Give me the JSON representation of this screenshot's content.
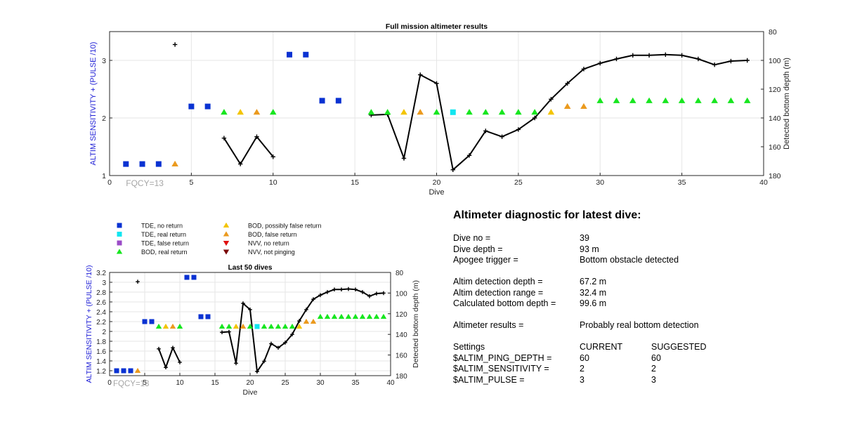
{
  "chart_data": [
    {
      "type": "scatter",
      "title": "Full mission altimeter results",
      "xlabel": "Dive",
      "ylabel_left": "ALTIM SENSITIVITY + (PULSE /10)",
      "ylabel_right": "Detected bottom depth (m)",
      "xlim": [
        0,
        40
      ],
      "ylim_left": [
        1,
        3.5
      ],
      "ylim_right": [
        180,
        80
      ],
      "xticks": [
        0,
        5,
        10,
        15,
        20,
        25,
        30,
        35,
        40
      ],
      "yticks_left": [
        1,
        2,
        3
      ],
      "yticks_right": [
        80,
        100,
        120,
        140,
        160,
        180
      ],
      "grid": true,
      "annotation": "FQCY=13",
      "markers": [
        {
          "series": "TDE, no return",
          "points": [
            [
              1,
              1.2
            ],
            [
              2,
              1.2
            ],
            [
              3,
              1.2
            ],
            [
              5,
              2.2
            ],
            [
              6,
              2.2
            ],
            [
              11,
              3.1
            ],
            [
              12,
              3.1
            ],
            [
              13,
              2.3
            ],
            [
              14,
              2.3
            ]
          ]
        },
        {
          "series": "TDE, real return",
          "points": [
            [
              21,
              2.1
            ]
          ]
        },
        {
          "series": "BOD, real return",
          "points": [
            [
              7,
              2.1
            ],
            [
              10,
              2.1
            ],
            [
              16,
              2.1
            ],
            [
              17,
              2.1
            ],
            [
              20,
              2.1
            ],
            [
              22,
              2.1
            ],
            [
              23,
              2.1
            ],
            [
              24,
              2.1
            ],
            [
              25,
              2.1
            ],
            [
              26,
              2.1
            ],
            [
              30,
              2.3
            ],
            [
              31,
              2.3
            ],
            [
              32,
              2.3
            ],
            [
              33,
              2.3
            ],
            [
              34,
              2.3
            ],
            [
              35,
              2.3
            ],
            [
              36,
              2.3
            ],
            [
              37,
              2.3
            ],
            [
              38,
              2.3
            ],
            [
              39,
              2.3
            ]
          ]
        },
        {
          "series": "BOD, possibly false return",
          "points": [
            [
              8,
              2.1
            ],
            [
              18,
              2.1
            ],
            [
              27,
              2.1
            ]
          ]
        },
        {
          "series": "BOD, false return",
          "points": [
            [
              4,
              1.2
            ],
            [
              9,
              2.1
            ],
            [
              19,
              2.1
            ],
            [
              28,
              2.2
            ],
            [
              29,
              2.2
            ]
          ]
        }
      ],
      "depth_segments": [
        [
          [
            4,
            89
          ]
        ],
        [
          [
            7,
            154
          ],
          [
            8,
            172
          ],
          [
            9,
            153
          ],
          [
            10,
            167
          ]
        ],
        [
          [
            16,
            138
          ],
          [
            17,
            137.5
          ],
          [
            18,
            168
          ],
          [
            19,
            110
          ],
          [
            20,
            116
          ],
          [
            21,
            176
          ],
          [
            22,
            166
          ],
          [
            23,
            149
          ],
          [
            24,
            153
          ],
          [
            25,
            148
          ],
          [
            26,
            140
          ],
          [
            27,
            127
          ],
          [
            28,
            116
          ],
          [
            29,
            106
          ],
          [
            30,
            102
          ],
          [
            31,
            99
          ],
          [
            32,
            96.5
          ],
          [
            33,
            96.5
          ],
          [
            34,
            96
          ],
          [
            35,
            96.5
          ],
          [
            36,
            99
          ],
          [
            37,
            103
          ],
          [
            38,
            100.5
          ],
          [
            39,
            100
          ]
        ]
      ]
    },
    {
      "type": "scatter",
      "title": "Last 50 dives",
      "xlabel": "Dive",
      "ylabel_left": "ALTIM SENSITIVITY + (PULSE /10)",
      "ylabel_right": "Detected bottom depth (m)",
      "xlim": [
        0,
        40
      ],
      "ylim_left": [
        1.1,
        3.2
      ],
      "ylim_right": [
        180,
        80
      ],
      "xticks": [
        0,
        5,
        10,
        15,
        20,
        25,
        30,
        35,
        40
      ],
      "yticks_left": [
        1.2,
        1.4,
        1.6,
        1.8,
        2,
        2.2,
        2.4,
        2.6,
        2.8,
        3,
        3.2
      ],
      "yticks_right": [
        80,
        100,
        120,
        140,
        160,
        180
      ],
      "grid": true,
      "annotation": "FQCY=13",
      "markers": [
        {
          "series": "TDE, no return",
          "points": [
            [
              1,
              1.2
            ],
            [
              2,
              1.2
            ],
            [
              3,
              1.2
            ],
            [
              5,
              2.2
            ],
            [
              6,
              2.2
            ],
            [
              11,
              3.1
            ],
            [
              12,
              3.1
            ],
            [
              13,
              2.3
            ],
            [
              14,
              2.3
            ]
          ]
        },
        {
          "series": "TDE, real return",
          "points": [
            [
              21,
              2.1
            ]
          ]
        },
        {
          "series": "BOD, real return",
          "points": [
            [
              7,
              2.1
            ],
            [
              10,
              2.1
            ],
            [
              16,
              2.1
            ],
            [
              17,
              2.1
            ],
            [
              20,
              2.1
            ],
            [
              22,
              2.1
            ],
            [
              23,
              2.1
            ],
            [
              24,
              2.1
            ],
            [
              25,
              2.1
            ],
            [
              26,
              2.1
            ],
            [
              30,
              2.3
            ],
            [
              31,
              2.3
            ],
            [
              32,
              2.3
            ],
            [
              33,
              2.3
            ],
            [
              34,
              2.3
            ],
            [
              35,
              2.3
            ],
            [
              36,
              2.3
            ],
            [
              37,
              2.3
            ],
            [
              38,
              2.3
            ],
            [
              39,
              2.3
            ]
          ]
        },
        {
          "series": "BOD, possibly false return",
          "points": [
            [
              8,
              2.1
            ],
            [
              18,
              2.1
            ],
            [
              27,
              2.1
            ]
          ]
        },
        {
          "series": "BOD, false return",
          "points": [
            [
              4,
              1.2
            ],
            [
              9,
              2.1
            ],
            [
              19,
              2.1
            ],
            [
              28,
              2.2
            ],
            [
              29,
              2.2
            ]
          ]
        }
      ],
      "depth_segments": [
        [
          [
            4,
            89
          ]
        ],
        [
          [
            7,
            154
          ],
          [
            8,
            172
          ],
          [
            9,
            153
          ],
          [
            10,
            167
          ]
        ],
        [
          [
            16,
            138
          ],
          [
            17,
            137.5
          ],
          [
            18,
            168
          ],
          [
            19,
            110
          ],
          [
            20,
            116
          ],
          [
            21,
            176
          ],
          [
            22,
            166
          ],
          [
            23,
            149
          ],
          [
            24,
            153
          ],
          [
            25,
            148
          ],
          [
            26,
            140
          ],
          [
            27,
            127
          ],
          [
            28,
            116
          ],
          [
            29,
            106
          ],
          [
            30,
            102
          ],
          [
            31,
            99
          ],
          [
            32,
            96.5
          ],
          [
            33,
            96.5
          ],
          [
            34,
            96
          ],
          [
            35,
            96.5
          ],
          [
            36,
            99
          ],
          [
            37,
            103
          ],
          [
            38,
            100.5
          ],
          [
            39,
            100
          ]
        ]
      ]
    }
  ],
  "legend": [
    {
      "label": "TDE, no return",
      "shape": "square",
      "color": "#0a32d2"
    },
    {
      "label": "TDE, real return",
      "shape": "square",
      "color": "#12e6f0"
    },
    {
      "label": "TDE, false return",
      "shape": "square",
      "color": "#9b4cc7"
    },
    {
      "label": "BOD, real return",
      "shape": "tri-up",
      "color": "#17e61f"
    },
    {
      "label": "BOD, possibly false return",
      "shape": "tri-up",
      "color": "#f3c400"
    },
    {
      "label": "BOD, false return",
      "shape": "tri-up",
      "color": "#eb9a1e"
    },
    {
      "label": "NVV, no return",
      "shape": "tri-down",
      "color": "#e01010"
    },
    {
      "label": "NVV, not pinging",
      "shape": "tri-down",
      "color": "#7a0808"
    }
  ],
  "colors": {
    "tde_no_return": "#0a32d2",
    "tde_real_return": "#12e6f0",
    "bod_real_return": "#17e61f",
    "bod_possibly_false": "#f3c400",
    "bod_false_return": "#eb9a1e",
    "left_axis_label": "#1f1fd6",
    "annotation": "#a6a6a6",
    "depth_line": "#000000"
  },
  "diagnostic": {
    "title": "Altimeter diagnostic for latest dive:",
    "dive_no_label": "Dive no =",
    "dive_no": "39",
    "dive_depth_label": "Dive depth =",
    "dive_depth": "93 m",
    "apogee_label": "Apogee trigger =",
    "apogee": "Bottom obstacle detected",
    "det_depth_label": "Altim detection depth =",
    "det_depth": "67.2 m",
    "det_range_label": "Altim detection range =",
    "det_range": "32.4 m",
    "calc_depth_label": "Calculated bottom depth =",
    "calc_depth": "99.6 m",
    "results_label": "Altimeter results =",
    "results": "Probably real bottom detection",
    "settings_label": "Settings",
    "current_label": "CURRENT",
    "suggested_label": "SUGGESTED",
    "settings": [
      {
        "name": "$ALTIM_PING_DEPTH =",
        "current": "60",
        "suggested": "60"
      },
      {
        "name": "$ALTIM_SENSITIVITY =",
        "current": "2",
        "suggested": "2"
      },
      {
        "name": "$ALTIM_PULSE =",
        "current": "3",
        "suggested": "3"
      }
    ]
  }
}
